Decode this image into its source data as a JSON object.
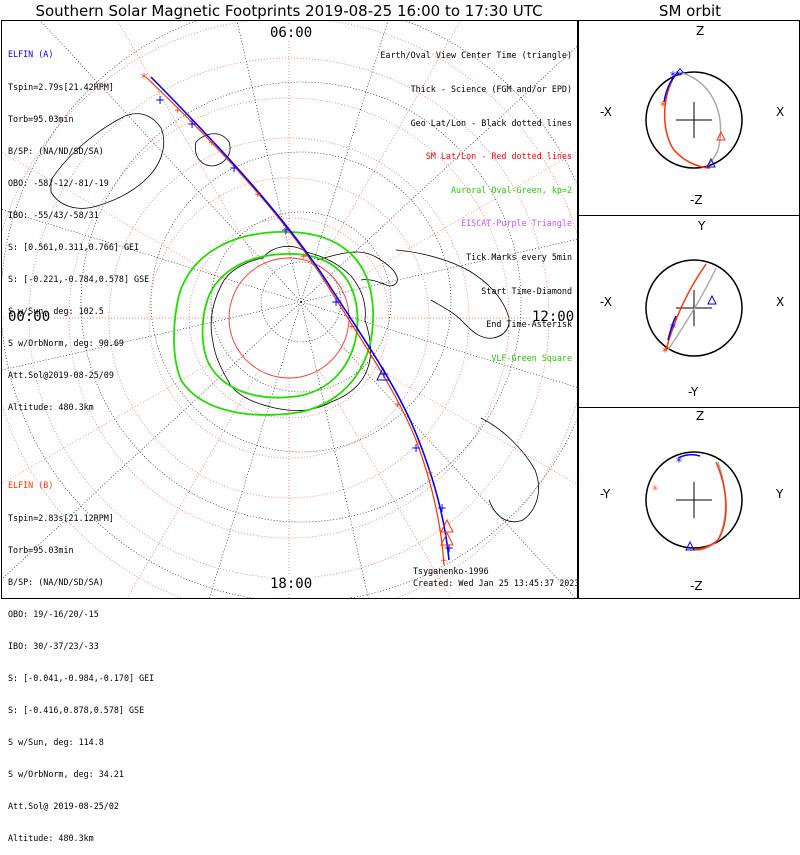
{
  "title": "Southern Solar Magnetic Footprints 2019-08-25 16:00 to 17:30 UTC",
  "sm_title": "SM orbit",
  "colors": {
    "blue": "#0000ff",
    "red": "#ff3300",
    "green": "#22dd00",
    "purple": "#bb55ff",
    "grid_red": "#ff5555",
    "gray": "#aaaaaa"
  },
  "elfin_a": {
    "name": "ELFIN (A)",
    "lines": [
      "Tspin=2.79s[21.42RPM]",
      "Torb=95.03min",
      "B/SP: (NA/ND/SD/SA)",
      "OBO: -58/-12/-81/-19",
      "IBO: -55/43/-58/31",
      "S: [0.561,0.311,0.766] GEI",
      "S: [-0.221,-0.784,0.578] GSE",
      "S w/Sun, deg: 102.5",
      "S w/OrbNorm, deg: 90.69",
      "Att.Sol@2019-08-25/09",
      "Altitude: 480.3km"
    ]
  },
  "elfin_b": {
    "name": "ELFIN (B)",
    "lines": [
      "Tspin=2.83s[21.12RPM]",
      "Torb=95.03min",
      "B/SP: (NA/ND/SD/SA)",
      "OBO: 19/-16/20/-15",
      "IBO: 30/-37/23/-33",
      "S: [-0.041,-0.984,-0.170] GEI",
      "S: [-0.416,0.878,0.578] GSE",
      "S w/Sun, deg: 114.8",
      "S w/OrbNorm, deg: 34.21",
      "Att.Sol@ 2019-08-25/02",
      "Altitude: 480.3km"
    ]
  },
  "legend": [
    {
      "text": "Earth/Oval View Center Time (triangle)",
      "color": "#000000"
    },
    {
      "text": "Thick - Science (FGM and/or EPD)",
      "color": "#000000"
    },
    {
      "text": "Geo Lat/Lon - Black dotted lines",
      "color": "#000000"
    },
    {
      "text": "SM Lat/Lon - Red dotted lines",
      "color": "#ff0000"
    },
    {
      "text": "Auroral Oval-Green, kp=2",
      "color": "#22cc00"
    },
    {
      "text": "EISCAT-Purple Triangle",
      "color": "#bb55ff"
    },
    {
      "text": "Tick Marks every 5min",
      "color": "#000000"
    },
    {
      "text": "Start Time-Diamond",
      "color": "#000000"
    },
    {
      "text": "End Time-Asterisk",
      "color": "#000000"
    },
    {
      "text": "VLF-Green Square",
      "color": "#22cc00"
    }
  ],
  "credits": {
    "model": "Tsyganenko-1996",
    "created": "Created: Wed Jan 25 13:45:37 2023"
  },
  "hours": {
    "top": "06:00",
    "left": "00:00",
    "right": "12:00",
    "bottom": "18:00"
  },
  "sm_panels": [
    {
      "top": "Z",
      "bottom": "-Z",
      "left": "-X",
      "right": "X"
    },
    {
      "top": "Y",
      "bottom": "-Y",
      "left": "-X",
      "right": "X"
    },
    {
      "top": "Z",
      "bottom": "-Z",
      "left": "-Y",
      "right": "Y"
    }
  ]
}
